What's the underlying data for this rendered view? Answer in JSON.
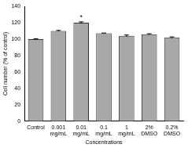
{
  "chart_data": {
    "type": "bar",
    "x_label": "Concentrations",
    "y_label": "Cell number (% of control)",
    "categories": [
      "Control",
      "0.001 mg/mL",
      "0.01 mg/mL",
      "0.1 mg/mL",
      "1 mg/mL",
      "2% DMSO",
      "0.2% DMSO"
    ],
    "values": [
      100,
      110,
      120,
      107,
      104,
      106,
      102
    ],
    "errors": [
      0.5,
      0.6,
      1,
      0.4,
      1,
      0.5,
      0.7
    ],
    "color": "#a8a8a8",
    "ylim": [
      0,
      140
    ],
    "yticks": [
      0,
      20,
      40,
      60,
      80,
      100,
      120,
      140
    ],
    "grid": false,
    "annotations": [
      {
        "text": "*",
        "category": "0.01 mg/mL"
      }
    ]
  }
}
